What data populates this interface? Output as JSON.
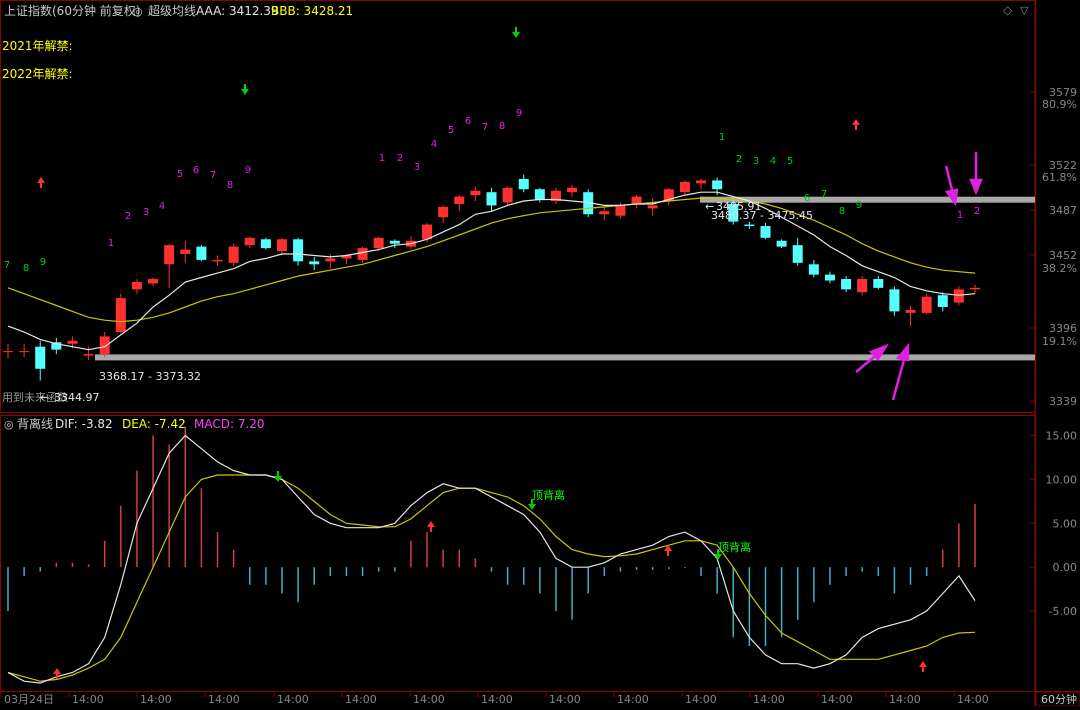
{
  "header": {
    "title": "上证指数(60分钟 前复权)",
    "indicator_name": "超级均线",
    "aaa_label": "AAA: 3412.39",
    "bbb_label": "BBB: 3428.21",
    "note_2021": "2021年解禁:",
    "note_2022": "2022年解禁:"
  },
  "colors": {
    "up": "#ff3030",
    "down": "#54ffff",
    "ma_fast": "#e6e6e6",
    "ma_slow": "#c8c800",
    "magenta": "#e020e0",
    "green": "#00d000",
    "yellow": "#ffff00",
    "macd_red": "#d04040",
    "macd_cyan": "#40b0c0",
    "band": "#a9a9a9"
  },
  "price_axis": {
    "ticks": [
      "3579",
      "3522",
      "3487",
      "3452",
      "3396",
      "3339"
    ],
    "pct_ticks": [
      "80.9%",
      "61.8%",
      "38.2%",
      "19.1%"
    ]
  },
  "price_labels": {
    "high_label": "3495.91",
    "band_upper_label": "3480.37 - 3475.45",
    "band_lower_label": "3368.17 - 3373.32",
    "low_label": "3344.97",
    "future_text": "用到未来函数"
  },
  "macd_header": {
    "name": "背离线",
    "dif": "DIF: -3.82",
    "dea": "DEA: -7.42",
    "macd": "MACD: 7.20"
  },
  "macd_axis": {
    "ticks": [
      "15.00",
      "10.00",
      "5.00",
      "0.00",
      "-5.00"
    ]
  },
  "macd_labels": {
    "top_div_1": "顶背离",
    "top_div_2": "顶背离"
  },
  "x_axis": {
    "labels": [
      "03月24日",
      "14:00",
      "14:00",
      "14:00",
      "14:00",
      "14:00",
      "14:00",
      "14:00",
      "14:00",
      "14:00",
      "14:00",
      "14:00",
      "14:00",
      "14:00",
      "14:00"
    ],
    "period": "60分钟"
  },
  "chart_data": {
    "type": "candlestick",
    "ylim": [
      3335,
      3600
    ],
    "candles": [
      {
        "o": 3375,
        "h": 3380,
        "l": 3370,
        "c": 3375
      },
      {
        "o": 3375,
        "h": 3380,
        "l": 3371,
        "c": 3375
      },
      {
        "o": 3378,
        "h": 3382,
        "l": 3355,
        "c": 3363
      },
      {
        "o": 3381,
        "h": 3384,
        "l": 3373,
        "c": 3376
      },
      {
        "o": 3380,
        "h": 3385,
        "l": 3377,
        "c": 3382
      },
      {
        "o": 3372,
        "h": 3378,
        "l": 3369,
        "c": 3373
      },
      {
        "o": 3373,
        "h": 3388,
        "l": 3371,
        "c": 3385
      },
      {
        "o": 3388,
        "h": 3414,
        "l": 3387,
        "c": 3411
      },
      {
        "o": 3417,
        "h": 3424,
        "l": 3414,
        "c": 3422
      },
      {
        "o": 3421,
        "h": 3425,
        "l": 3419,
        "c": 3424
      },
      {
        "o": 3434,
        "h": 3448,
        "l": 3418,
        "c": 3447
      },
      {
        "o": 3441,
        "h": 3450,
        "l": 3435,
        "c": 3444
      },
      {
        "o": 3446,
        "h": 3447,
        "l": 3436,
        "c": 3437
      },
      {
        "o": 3436,
        "h": 3440,
        "l": 3433,
        "c": 3437
      },
      {
        "o": 3435,
        "h": 3448,
        "l": 3433,
        "c": 3446
      },
      {
        "o": 3447,
        "h": 3453,
        "l": 3445,
        "c": 3452
      },
      {
        "o": 3451,
        "h": 3452,
        "l": 3444,
        "c": 3445
      },
      {
        "o": 3443,
        "h": 3452,
        "l": 3440,
        "c": 3451
      },
      {
        "o": 3451,
        "h": 3452,
        "l": 3433,
        "c": 3436
      },
      {
        "o": 3436,
        "h": 3439,
        "l": 3430,
        "c": 3434
      },
      {
        "o": 3436,
        "h": 3441,
        "l": 3431,
        "c": 3438
      },
      {
        "o": 3438,
        "h": 3441,
        "l": 3434,
        "c": 3440
      },
      {
        "o": 3437,
        "h": 3446,
        "l": 3435,
        "c": 3445
      },
      {
        "o": 3445,
        "h": 3453,
        "l": 3443,
        "c": 3452
      },
      {
        "o": 3450,
        "h": 3451,
        "l": 3445,
        "c": 3448
      },
      {
        "o": 3446,
        "h": 3453,
        "l": 3444,
        "c": 3450
      },
      {
        "o": 3451,
        "h": 3462,
        "l": 3449,
        "c": 3461
      },
      {
        "o": 3466,
        "h": 3474,
        "l": 3462,
        "c": 3473
      },
      {
        "o": 3475,
        "h": 3481,
        "l": 3470,
        "c": 3480
      },
      {
        "o": 3481,
        "h": 3487,
        "l": 3477,
        "c": 3484
      },
      {
        "o": 3483,
        "h": 3486,
        "l": 3470,
        "c": 3474
      },
      {
        "o": 3476,
        "h": 3487,
        "l": 3474,
        "c": 3486
      },
      {
        "o": 3492,
        "h": 3495,
        "l": 3483,
        "c": 3485
      },
      {
        "o": 3485,
        "h": 3486,
        "l": 3476,
        "c": 3478
      },
      {
        "o": 3477,
        "h": 3486,
        "l": 3475,
        "c": 3484
      },
      {
        "o": 3483,
        "h": 3488,
        "l": 3480,
        "c": 3486
      },
      {
        "o": 3483,
        "h": 3485,
        "l": 3466,
        "c": 3468
      },
      {
        "o": 3468,
        "h": 3473,
        "l": 3464,
        "c": 3470
      },
      {
        "o": 3467,
        "h": 3476,
        "l": 3465,
        "c": 3474
      },
      {
        "o": 3475,
        "h": 3481,
        "l": 3472,
        "c": 3480
      },
      {
        "o": 3472,
        "h": 3479,
        "l": 3467,
        "c": 3474
      },
      {
        "o": 3477,
        "h": 3486,
        "l": 3474,
        "c": 3485
      },
      {
        "o": 3483,
        "h": 3491,
        "l": 3481,
        "c": 3490
      },
      {
        "o": 3489,
        "h": 3492,
        "l": 3485,
        "c": 3491
      },
      {
        "o": 3491,
        "h": 3493,
        "l": 3481,
        "c": 3485
      },
      {
        "o": 3475,
        "h": 3479,
        "l": 3461,
        "c": 3463
      },
      {
        "o": 3461,
        "h": 3463,
        "l": 3458,
        "c": 3460
      },
      {
        "o": 3460,
        "h": 3462,
        "l": 3451,
        "c": 3452
      },
      {
        "o": 3450,
        "h": 3451,
        "l": 3445,
        "c": 3446
      },
      {
        "o": 3447,
        "h": 3452,
        "l": 3433,
        "c": 3435
      },
      {
        "o": 3434,
        "h": 3437,
        "l": 3425,
        "c": 3427
      },
      {
        "o": 3427,
        "h": 3429,
        "l": 3421,
        "c": 3423
      },
      {
        "o": 3424,
        "h": 3426,
        "l": 3415,
        "c": 3417
      },
      {
        "o": 3415,
        "h": 3426,
        "l": 3413,
        "c": 3424
      },
      {
        "o": 3424,
        "h": 3426,
        "l": 3417,
        "c": 3418
      },
      {
        "o": 3417,
        "h": 3419,
        "l": 3399,
        "c": 3402
      },
      {
        "o": 3401,
        "h": 3406,
        "l": 3392,
        "c": 3403
      },
      {
        "o": 3401,
        "h": 3414,
        "l": 3400,
        "c": 3412
      },
      {
        "o": 3413,
        "h": 3415,
        "l": 3402,
        "c": 3405
      },
      {
        "o": 3408,
        "h": 3419,
        "l": 3406,
        "c": 3417
      },
      {
        "o": 3417,
        "h": 3420,
        "l": 3414,
        "c": 3418
      }
    ],
    "ma_fast": [
      3392,
      3388,
      3383,
      3380,
      3378,
      3376,
      3378,
      3386,
      3394,
      3405,
      3413,
      3422,
      3425,
      3428,
      3431,
      3436,
      3438,
      3441,
      3441,
      3440,
      3439,
      3440,
      3442,
      3444,
      3447,
      3448,
      3451,
      3456,
      3461,
      3468,
      3470,
      3474,
      3477,
      3478,
      3478,
      3477,
      3476,
      3474,
      3474,
      3475,
      3475,
      3478,
      3481,
      3483,
      3483,
      3480,
      3477,
      3472,
      3466,
      3460,
      3454,
      3446,
      3440,
      3433,
      3429,
      3425,
      3419,
      3416,
      3414,
      3413,
      3414
    ],
    "ma_slow": [
      3418,
      3414,
      3410,
      3406,
      3402,
      3398,
      3396,
      3395,
      3396,
      3398,
      3401,
      3405,
      3409,
      3412,
      3414,
      3417,
      3420,
      3423,
      3426,
      3428,
      3430,
      3432,
      3434,
      3437,
      3440,
      3443,
      3446,
      3450,
      3454,
      3458,
      3462,
      3465,
      3467,
      3469,
      3470,
      3471,
      3472,
      3473,
      3474,
      3475,
      3476,
      3477,
      3478,
      3479,
      3479,
      3478,
      3477,
      3475,
      3472,
      3468,
      3464,
      3459,
      3454,
      3448,
      3443,
      3439,
      3435,
      3432,
      3430,
      3429,
      3428
    ],
    "band_upper": [
      3480.37,
      3475.45
    ],
    "band_lower": [
      3368.17,
      3373.32
    ],
    "macd": {
      "ylim": [
        -14,
        17
      ],
      "dif": [
        -12,
        -13,
        -13.2,
        -12.5,
        -12,
        -11,
        -8,
        -2,
        5,
        9,
        13,
        15,
        13.5,
        12,
        11,
        10.5,
        10.5,
        10,
        8,
        6,
        5,
        4.5,
        4.5,
        4.5,
        5,
        7,
        8.5,
        9.5,
        9,
        9,
        8,
        7,
        6,
        4,
        1,
        0,
        0,
        0.5,
        1.5,
        2,
        2.5,
        3.5,
        4,
        3,
        1,
        -5,
        -8,
        -10,
        -11,
        -11,
        -11.5,
        -11,
        -10,
        -8,
        -7,
        -6.5,
        -6,
        -5,
        -3,
        -1,
        -3.82
      ],
      "dea": [
        -12,
        -12.5,
        -13,
        -12.8,
        -12.3,
        -11.5,
        -10.5,
        -8,
        -4,
        0,
        4,
        8,
        10,
        10.5,
        10.5,
        10.5,
        10.5,
        10,
        9,
        7.5,
        6,
        5,
        4.8,
        4.6,
        4.6,
        5.5,
        7,
        8.5,
        9,
        9,
        8.5,
        8,
        7,
        5.5,
        3.5,
        2,
        1.5,
        1.2,
        1.3,
        1.5,
        2,
        2.5,
        3,
        3,
        2.5,
        0,
        -3,
        -5.5,
        -7.5,
        -8.5,
        -9.5,
        -10.5,
        -10.5,
        -10.5,
        -10.5,
        -10,
        -9.5,
        -9,
        -8,
        -7.5,
        -7.42
      ],
      "bars": [
        -5,
        -1,
        -0.5,
        0.5,
        0.5,
        0.3,
        3,
        7,
        11,
        15,
        14,
        16,
        9,
        4,
        2,
        -2,
        -2,
        -3,
        -4,
        -2,
        -1,
        -1,
        -1,
        -0.5,
        -0.5,
        3,
        4,
        2,
        2,
        1,
        -0.5,
        -2,
        -2,
        -3,
        -5,
        -6,
        -3,
        -1,
        -0.5,
        -0.3,
        -0.3,
        -0.2,
        -0.1,
        -1,
        -3,
        -8,
        -9,
        -9,
        -8,
        -6,
        -4,
        -2,
        -1,
        -0.5,
        -1,
        -3,
        -2,
        -1,
        2,
        5,
        7.2
      ]
    }
  }
}
